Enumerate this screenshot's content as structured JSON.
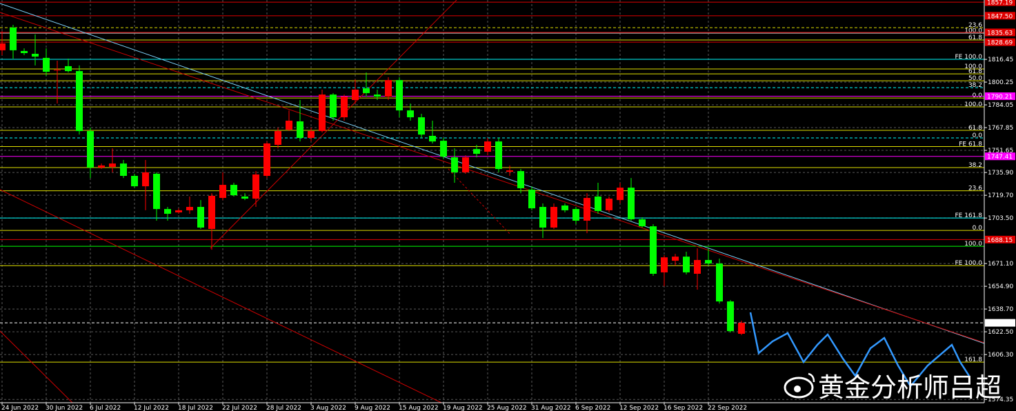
{
  "chart_data": {
    "type": "candlestick",
    "up_color": "#ff0000",
    "down_color": "#00ff00",
    "grid": true,
    "ylim": [
      1572,
      1858.7
    ],
    "yticks": [
      1816.45,
      1800.25,
      1784.05,
      1767.85,
      1751.65,
      {
        "value": 1735.9,
        "label": "1735.90"
      },
      {
        "value": 1719.7,
        "label": "1719.70"
      },
      {
        "value": 1703.5,
        "label": "1703.50"
      },
      {
        "value": 1671.1,
        "label": "1671.10"
      },
      {
        "value": 1654.9,
        "label": "1654.90"
      },
      {
        "value": 1638.7,
        "label": "1638.70"
      },
      {
        "value": 1622.5,
        "label": "1622.50"
      },
      {
        "value": 1606.3,
        "label": "1606.30"
      },
      1574.35
    ],
    "categories": [
      "24 Jun 2022",
      null,
      null,
      null,
      "30 Jun 2022",
      null,
      null,
      null,
      "6 Jul 2022",
      null,
      null,
      null,
      "12 Jul 2022",
      null,
      null,
      null,
      "18 Jul 2022",
      null,
      null,
      null,
      "22 Jul 2022",
      null,
      null,
      null,
      "28 Jul 2022",
      null,
      null,
      null,
      "3 Aug 2022",
      null,
      null,
      null,
      "9 Aug 2022",
      null,
      null,
      null,
      "15 Aug 2022",
      null,
      null,
      null,
      "19 Aug 2022",
      null,
      null,
      null,
      "25 Aug 2022",
      null,
      null,
      null,
      "31 Aug 2022",
      null,
      null,
      null,
      "6 Sep 2022",
      null,
      null,
      null,
      "12 Sep 2022",
      null,
      null,
      null,
      "16 Sep 2022",
      null,
      null,
      null,
      "22 Sep 2022",
      null,
      null,
      null
    ],
    "open": [
      1822.9,
      1839.1,
      1822.4,
      1820.4,
      1817.5,
      1808.6,
      1811.6,
      1808.1,
      1765.4,
      1739.4,
      1739.9,
      1742.3,
      1733.5,
      1726.1,
      1735.0,
      1709.9,
      1707.5,
      1709.0,
      1711.4,
      1695.7,
      1717.8,
      1727.1,
      1718.8,
      1717.3,
      1733.5,
      1755.6,
      1766.4,
      1772.3,
      1760.5,
      1765.4,
      1791.4,
      1775.2,
      1787.5,
      1795.8,
      1791.4,
      1789.9,
      1801.7,
      1780.1,
      1775.2,
      1762.0,
      1758.5,
      1746.7,
      1736.0,
      1752.6,
      1750.7,
      1758.0,
      1736.4,
      1736.9,
      1723.7,
      1711.4,
      1696.7,
      1712.4,
      1709.9,
      1701.6,
      1718.8,
      1709.0,
      1716.3,
      1725.1,
      1702.6,
      1697.6,
      1664.8,
      1673.1,
      1676.0,
      1663.8,
      1673.6,
      1671.1,
      1644.1,
      1621.1
    ],
    "high": [
      1836.6,
      1841.0,
      1824.3,
      1834.2,
      1824.3,
      1815.5,
      1817.0,
      1812.1,
      1767.9,
      1742.3,
      1753.1,
      1744.8,
      1735.0,
      1744.8,
      1736.0,
      1711.4,
      1710.4,
      1718.8,
      1716.3,
      1721.2,
      1736.0,
      1728.6,
      1721.2,
      1736.9,
      1758.0,
      1767.9,
      1780.1,
      1787.5,
      1767.9,
      1794.9,
      1792.4,
      1791.4,
      1802.2,
      1807.1,
      1794.9,
      1803.7,
      1803.7,
      1785.0,
      1777.7,
      1772.8,
      1760.5,
      1753.1,
      1748.2,
      1755.6,
      1760.5,
      1760.5,
      1740.9,
      1738.4,
      1726.1,
      1713.9,
      1713.9,
      1713.9,
      1711.4,
      1721.2,
      1728.6,
      1718.8,
      1728.6,
      1732.0,
      1704.0,
      1699.1,
      1677.0,
      1678.0,
      1679.5,
      1681.9,
      1681.9,
      1674.6,
      1645.1,
      1630.4
    ],
    "low": [
      1819.4,
      1817.0,
      1819.4,
      1812.1,
      1804.7,
      1785.0,
      1807.1,
      1762.9,
      1732.0,
      1738.4,
      1736.0,
      1732.0,
      1725.1,
      1709.0,
      1701.6,
      1701.6,
      1706.5,
      1706.5,
      1695.7,
      1680.9,
      1716.3,
      1718.8,
      1716.3,
      1711.4,
      1732.0,
      1753.1,
      1765.4,
      1758.0,
      1758.0,
      1764.4,
      1772.8,
      1772.8,
      1785.0,
      1789.9,
      1787.5,
      1787.5,
      1775.2,
      1772.8,
      1760.5,
      1756.6,
      1745.7,
      1728.6,
      1735.0,
      1746.7,
      1748.2,
      1736.0,
      1733.5,
      1721.2,
      1709.0,
      1689.3,
      1695.7,
      1707.5,
      1699.1,
      1692.7,
      1706.5,
      1707.5,
      1713.9,
      1701.6,
      1696.7,
      1662.3,
      1654.9,
      1669.6,
      1663.3,
      1652.5,
      1669.6,
      1642.6,
      1622.0,
      1620.2
    ],
    "close": [
      1827.8,
      1822.9,
      1820.9,
      1818.4,
      1807.6,
      1809.1,
      1808.1,
      1765.4,
      1739.4,
      1740.9,
      1742.3,
      1733.5,
      1726.1,
      1736.0,
      1709.9,
      1706.5,
      1709.0,
      1711.4,
      1696.7,
      1719.3,
      1727.1,
      1719.7,
      1717.3,
      1734.5,
      1756.6,
      1765.4,
      1772.8,
      1760.5,
      1765.4,
      1791.4,
      1775.2,
      1789.9,
      1794.9,
      1792.4,
      1789.9,
      1801.7,
      1780.1,
      1775.2,
      1762.9,
      1758.0,
      1747.2,
      1736.0,
      1746.7,
      1749.2,
      1758.0,
      1738.4,
      1737.4,
      1724.7,
      1710.4,
      1696.7,
      1711.4,
      1709.0,
      1701.6,
      1717.8,
      1708.5,
      1717.3,
      1725.1,
      1702.6,
      1697.6,
      1663.8,
      1675.5,
      1676.0,
      1664.8,
      1673.6,
      1671.1,
      1644.1,
      1623.0,
      1628.9
    ],
    "levels": [
      {
        "value": 1839.0,
        "label": "23.6",
        "color": "#e0e000",
        "dashed": true
      },
      {
        "value": 1835.1,
        "label": "100.0",
        "color": "#c0c0c0",
        "dashed": false
      },
      {
        "value": 1830.2,
        "label": "61.8",
        "color": "#e0e000",
        "dashed": false
      },
      {
        "value": 1816.45,
        "label": "FE 100.0",
        "color": "#00ffff",
        "dashed": false
      },
      {
        "value": 1809.6,
        "label": "100.0",
        "color": "#e0e000",
        "dashed": false
      },
      {
        "value": 1806.1,
        "label": "61.8",
        "color": "#e0e000",
        "dashed": false
      },
      {
        "value": 1801.2,
        "label": "50.0",
        "color": "#e0e000",
        "dashed": false
      },
      {
        "value": 1796.3,
        "label": "38.2",
        "color": "#00ffff",
        "dashed": true
      },
      {
        "value": 1788.9,
        "label": "0.0",
        "color": "#e0e000",
        "dashed": false
      },
      {
        "value": 1782.6,
        "label": "100.0",
        "color": "#e0e000",
        "dashed": false
      },
      {
        "value": 1765.9,
        "label": "61.8",
        "color": "#e0e000",
        "dashed": false
      },
      {
        "value": 1760.5,
        "label": "0.0",
        "color": "#00ffff",
        "dashed": true
      },
      {
        "value": 1754.4,
        "label": "FE 61.8",
        "color": "#e0e000",
        "dashed": false
      },
      {
        "value": 1739.4,
        "label": "38.2",
        "color": "#e0e000",
        "dashed": false
      },
      {
        "value": 1722.9,
        "label": "23.6",
        "color": "#e0e000",
        "dashed": false
      },
      {
        "value": 1703.5,
        "label": "FE 161.8",
        "color": "#00ffff",
        "dashed": false
      },
      {
        "value": 1694.7,
        "label": "0.0",
        "color": "#e0e000",
        "dashed": false
      },
      {
        "value": 1683.4,
        "label": "100.0",
        "color": "#00ff00",
        "dashed": false
      },
      {
        "value": 1669.6,
        "label": "FE 100.0",
        "color": "#e0e000",
        "dashed": false
      },
      {
        "value": 1600.9,
        "label": "161.8",
        "color": "#e0e000",
        "dashed": false
      }
    ],
    "price_labels": [
      {
        "value": 1857.19,
        "label": "1857.19",
        "color": "#e00000",
        "text_color": "#ffffff"
      },
      {
        "value": 1847.5,
        "label": "1847.50",
        "color": "#e00000",
        "text_color": "#ffffff"
      },
      {
        "value": 1835.63,
        "label": "1835.63",
        "color": "#e00000",
        "text_color": "#ffffff"
      },
      {
        "value": 1828.69,
        "label": "1828.69",
        "color": "#e00000",
        "text_color": "#ffffff"
      },
      {
        "value": 1790.21,
        "label": "1790.21",
        "color": "#ff00ff",
        "text_color": "#ffffff"
      },
      {
        "value": 1747.41,
        "label": "1747.41",
        "color": "#ff00ff",
        "text_color": "#ffffff"
      },
      {
        "value": 1688.15,
        "label": "1688.15",
        "color": "#e00000",
        "text_color": "#ffffff"
      },
      {
        "value": 1628.89,
        "label": "1628.89",
        "color": "#ffffff",
        "text_color": "#000000"
      }
    ],
    "watermark": "黄金分析师吕超"
  }
}
